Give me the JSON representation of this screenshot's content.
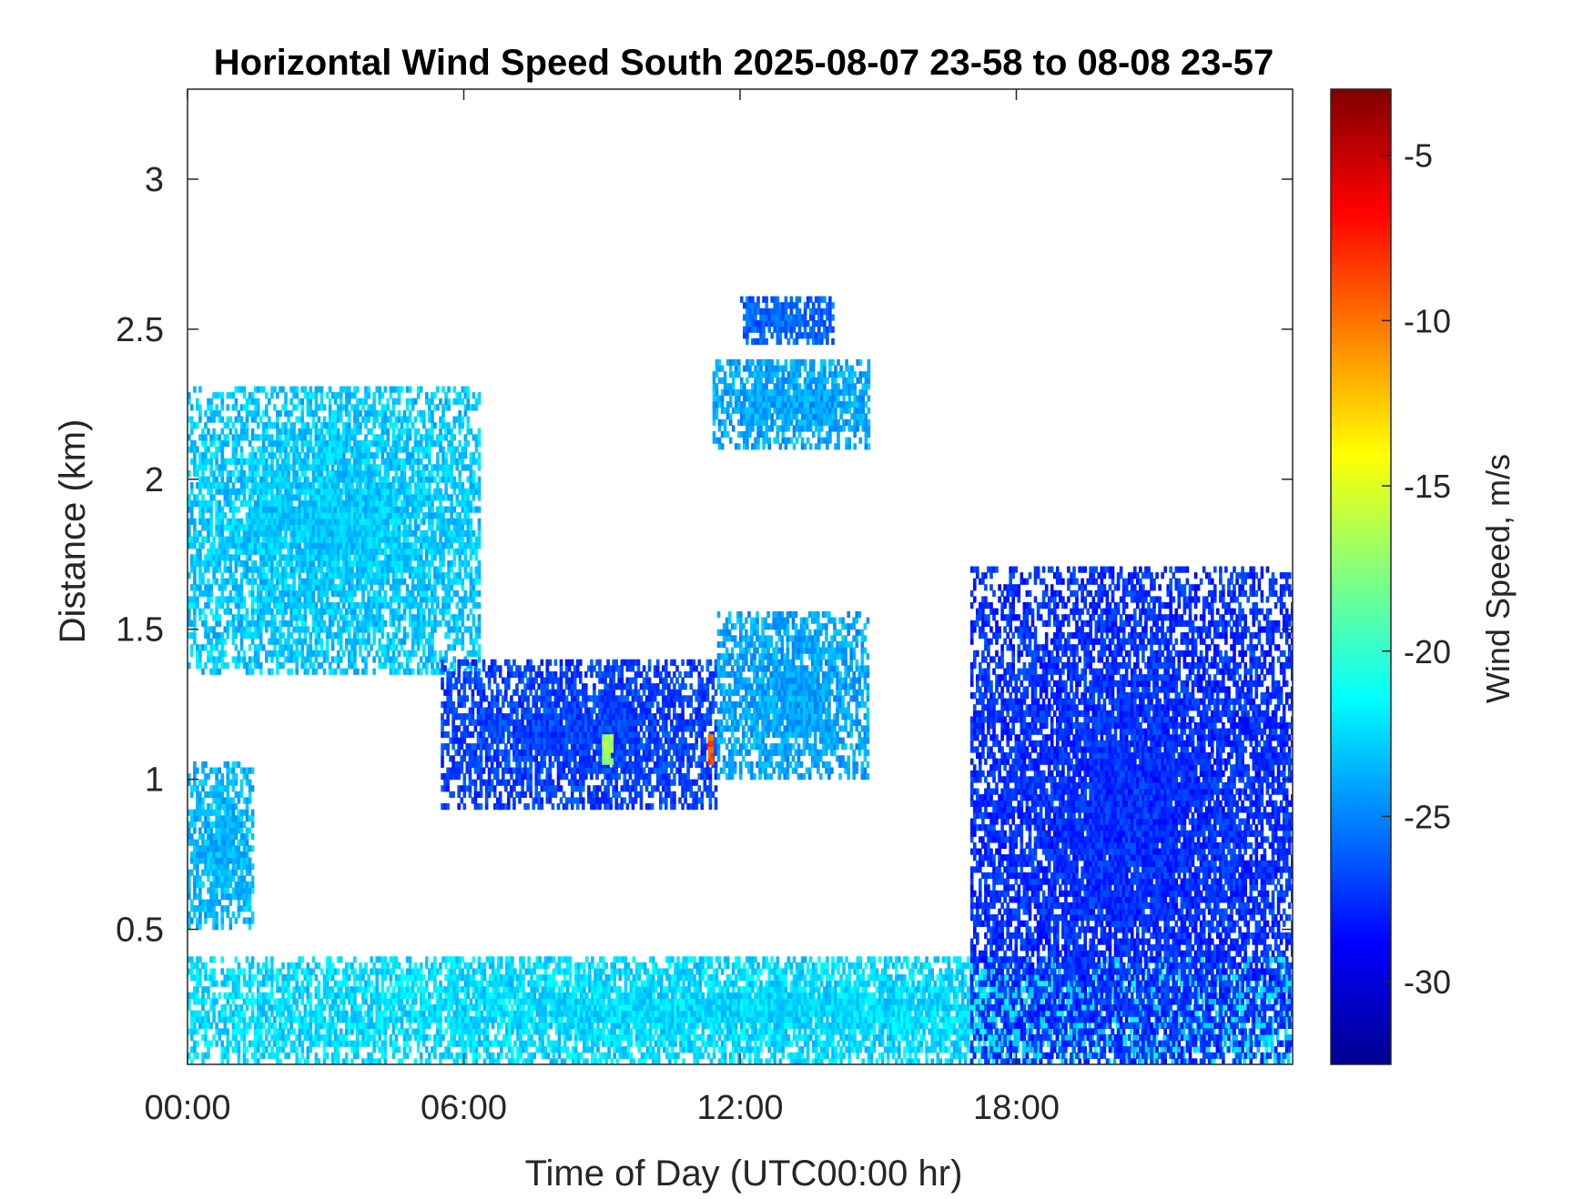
{
  "chart_data": {
    "type": "heatmap",
    "title": "Horizontal Wind Speed South 2025-08-07 23-58 to 08-08 23-57",
    "xlabel": "Time of Day (UTC00:00 hr)",
    "ylabel": "Distance (km)",
    "xlim": [
      0,
      24
    ],
    "ylim": [
      0.05,
      3.3
    ],
    "x_ticks": [
      0,
      6,
      12,
      18
    ],
    "x_tick_labels": [
      "00:00",
      "06:00",
      "12:00",
      "18:00"
    ],
    "y_ticks": [
      0.5,
      1,
      1.5,
      2,
      2.5,
      3
    ],
    "y_tick_labels": [
      "0.5",
      "1",
      "1.5",
      "2",
      "2.5",
      "3"
    ],
    "colorbar": {
      "label": "Wind Speed, m/s",
      "range": [
        -32.5,
        -3
      ],
      "ticks": [
        -5,
        -10,
        -15,
        -20,
        -25,
        -30
      ],
      "tick_labels": [
        "-5",
        "-10",
        "-15",
        "-20",
        "-25",
        "-30"
      ],
      "colormap": "jet",
      "colors": [
        "#00008f",
        "#0000ff",
        "#0080ff",
        "#00ffff",
        "#80ff80",
        "#ffff00",
        "#ff8000",
        "#ff0000",
        "#800000"
      ]
    },
    "grid": false,
    "regions": [
      {
        "time_range": [
          0,
          24
        ],
        "distance_range": [
          0.05,
          0.4
        ],
        "wind_speed": -22.5,
        "note": "near-surface layer, -21 to -24 before 15:00, -26 to -29 after 17:00"
      },
      {
        "time_range": [
          0,
          6.3
        ],
        "distance_range": [
          1.35,
          2.3
        ],
        "wind_speed": -23
      },
      {
        "time_range": [
          0,
          1.4
        ],
        "distance_range": [
          0.5,
          1.05
        ],
        "wind_speed": -23.5
      },
      {
        "time_range": [
          5.5,
          11.5
        ],
        "distance_range": [
          0.9,
          1.4
        ],
        "wind_speed": -27
      },
      {
        "time_range": [
          11.5,
          14.8
        ],
        "distance_range": [
          1.0,
          1.55
        ],
        "wind_speed": -24
      },
      {
        "time_range": [
          11.4,
          14.8
        ],
        "distance_range": [
          2.1,
          2.4
        ],
        "wind_speed": -24
      },
      {
        "time_range": [
          12.0,
          14.0
        ],
        "distance_range": [
          2.45,
          2.6
        ],
        "wind_speed": -26
      },
      {
        "time_range": [
          17.0,
          24
        ],
        "distance_range": [
          0.05,
          1.7
        ],
        "wind_speed": -27.5
      },
      {
        "time_range": [
          9.0,
          9.2
        ],
        "distance_range": [
          1.05,
          1.15
        ],
        "wind_speed": -17
      },
      {
        "time_range": [
          11.3,
          11.4
        ],
        "distance_range": [
          1.05,
          1.15
        ],
        "wind_speed": -9
      }
    ]
  }
}
